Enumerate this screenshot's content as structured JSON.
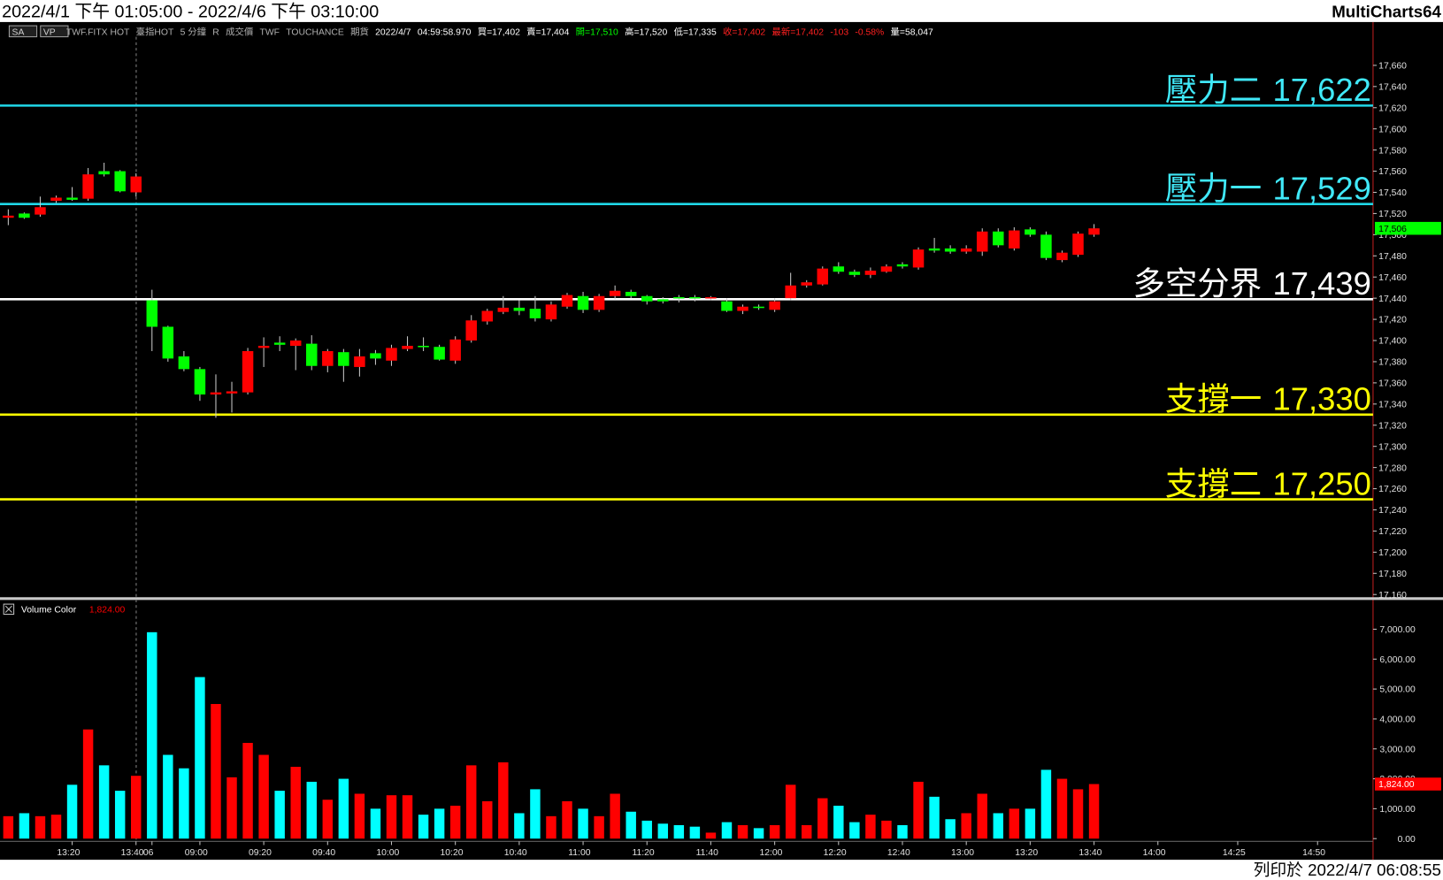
{
  "header": {
    "range": "2022/4/1 下午 01:05:00 - 2022/4/6 下午 03:10:00",
    "app": "MultiCharts64"
  },
  "toolbar": [
    "SA",
    "VP"
  ],
  "info": [
    {
      "text": "TWF.FITX HOT",
      "color": "#b0b0b0"
    },
    {
      "text": "臺指HOT",
      "color": "#b0b0b0"
    },
    {
      "text": "5 分鐘",
      "color": "#b0b0b0"
    },
    {
      "text": "R",
      "color": "#b0b0b0"
    },
    {
      "text": "成交價",
      "color": "#b0b0b0"
    },
    {
      "text": "TWF",
      "color": "#b0b0b0"
    },
    {
      "text": "TOUCHANCE",
      "color": "#b0b0b0"
    },
    {
      "text": "期貨",
      "color": "#b0b0b0"
    },
    {
      "text": "2022/4/7",
      "color": "#ffffff"
    },
    {
      "text": "04:59:58.970",
      "color": "#ffffff"
    },
    {
      "text": "買=17,402",
      "color": "#ffffff"
    },
    {
      "text": "賣=17,404",
      "color": "#ffffff"
    },
    {
      "text": "開=17,510",
      "color": "#00ff00"
    },
    {
      "text": "高=17,520",
      "color": "#ffffff"
    },
    {
      "text": "低=17,335",
      "color": "#ffffff"
    },
    {
      "text": "收=17,402",
      "color": "#ff2020"
    },
    {
      "text": "最新=17,402",
      "color": "#ff2020"
    },
    {
      "text": "-103",
      "color": "#ff2020"
    },
    {
      "text": "-0.58%",
      "color": "#ff2020"
    },
    {
      "text": "量=58,047",
      "color": "#ffffff"
    }
  ],
  "chart_data": {
    "type": "candlestick",
    "categories": [
      null,
      null,
      null,
      null,
      "13:20",
      null,
      null,
      null,
      "13:40",
      "06",
      null,
      null,
      "09:00",
      null,
      null,
      null,
      "09:20",
      null,
      null,
      null,
      "09:40",
      null,
      null,
      null,
      "10:00",
      null,
      null,
      null,
      "10:20",
      null,
      null,
      null,
      "10:40",
      null,
      null,
      null,
      "11:00",
      null,
      null,
      null,
      "11:20",
      null,
      null,
      null,
      "11:40",
      null,
      null,
      null,
      "12:00",
      null,
      null,
      null,
      "12:20",
      null,
      null,
      null,
      "12:40",
      null,
      null,
      null,
      "13:00",
      null,
      null,
      null,
      "13:20",
      null,
      null,
      null,
      "13:40",
      null,
      null,
      null,
      "14:00",
      null,
      null,
      null,
      null,
      "14:25",
      null,
      null,
      null,
      null,
      "14:50"
    ],
    "open": [
      17516,
      17520,
      17519,
      17532,
      17535,
      17534,
      17560,
      17560,
      17540,
      17438,
      17413,
      17385,
      17373,
      17349,
      17350,
      17351,
      17393,
      17398,
      17395,
      17397,
      17376,
      17389,
      17375,
      17388,
      17381,
      17392,
      17395,
      17394,
      17381,
      17400,
      17418,
      17427,
      17431,
      17430,
      17420,
      17432,
      17442,
      17429,
      17442,
      17446,
      17442,
      17439,
      17441,
      17441,
      17440,
      17437,
      17428,
      17432,
      17429,
      17440,
      17452,
      17453,
      17470,
      17465,
      17462,
      17465,
      17472,
      17469,
      17487,
      17487,
      17484,
      17484,
      17503,
      17487,
      17505,
      17500,
      17476,
      17481,
      17500,
      null,
      null,
      null,
      null,
      null,
      null,
      null,
      null,
      null,
      null,
      null,
      null,
      null,
      null
    ],
    "high": [
      17524,
      17521,
      17536,
      17537,
      17545,
      17563,
      17568,
      17561,
      17558,
      17448,
      17414,
      17390,
      17375,
      17368,
      17361,
      17393,
      17403,
      17404,
      17402,
      17405,
      17392,
      17392,
      17392,
      17391,
      17396,
      17404,
      17403,
      17396,
      17404,
      17424,
      17430,
      17442,
      17438,
      17442,
      17437,
      17445,
      17446,
      17444,
      17452,
      17448,
      17443,
      17441,
      17443,
      17443,
      17442,
      17440,
      17434,
      17434,
      17440,
      17464,
      17457,
      17470,
      17474,
      17467,
      17469,
      17472,
      17474,
      17488,
      17497,
      17490,
      17490,
      17506,
      17506,
      17507,
      17507,
      17503,
      17485,
      17503,
      17510,
      null,
      null,
      null,
      null,
      null,
      null,
      null,
      null,
      null,
      null,
      null,
      null,
      null,
      null
    ],
    "low": [
      17509,
      17515,
      17517,
      17530,
      17532,
      17532,
      17555,
      17540,
      17536,
      17390,
      17380,
      17371,
      17343,
      17327,
      17332,
      17349,
      17375,
      17390,
      17372,
      17372,
      17370,
      17361,
      17366,
      17377,
      17376,
      17390,
      17390,
      17381,
      17378,
      17398,
      17415,
      17425,
      17424,
      17418,
      17418,
      17430,
      17426,
      17427,
      17439,
      17440,
      17434,
      17435,
      17436,
      17437,
      17438,
      17427,
      17425,
      17429,
      17427,
      17438,
      17450,
      17452,
      17463,
      17460,
      17459,
      17464,
      17468,
      17467,
      17483,
      17482,
      17482,
      17480,
      17488,
      17485,
      17498,
      17476,
      17474,
      17479,
      17498,
      null,
      null,
      null,
      null,
      null,
      null,
      null,
      null,
      null,
      null,
      null,
      null,
      null,
      null
    ],
    "close": [
      17518,
      17516,
      17526,
      17535,
      17533,
      17557,
      17557,
      17541,
      17555,
      17413,
      17383,
      17373,
      17349,
      17351,
      17352,
      17390,
      17395,
      17396,
      17400,
      17376,
      17390,
      17376,
      17385,
      17383,
      17393,
      17395,
      17394,
      17382,
      17401,
      17419,
      17428,
      17431,
      17428,
      17421,
      17434,
      17443,
      17429,
      17442,
      17447,
      17442,
      17437,
      17437,
      17440,
      17440,
      17441,
      17428,
      17432,
      17431,
      17437,
      17452,
      17455,
      17468,
      17465,
      17462,
      17466,
      17470,
      17470,
      17486,
      17485,
      17484,
      17487,
      17503,
      17490,
      17504,
      17500,
      17478,
      17483,
      17501,
      17506,
      null,
      null,
      null,
      null,
      null,
      null,
      null,
      null,
      null,
      null,
      null,
      null,
      null,
      null
    ],
    "up_color": "#ff0000",
    "down_color": "#00ff00",
    "last_label": "17,506",
    "ylim": [
      17157,
      17687
    ],
    "yticks": [
      {
        "value": 17160,
        "label": "17,160"
      },
      {
        "value": 17180,
        "label": "17,180"
      },
      {
        "value": 17200,
        "label": "17,200"
      },
      {
        "value": 17220,
        "label": "17,220"
      },
      {
        "value": 17240,
        "label": "17,240"
      },
      {
        "value": 17260,
        "label": "17,260"
      },
      {
        "value": 17280,
        "label": "17,280"
      },
      {
        "value": 17300,
        "label": "17,300"
      },
      {
        "value": 17320,
        "label": "17,320"
      },
      {
        "value": 17340,
        "label": "17,340"
      },
      {
        "value": 17360,
        "label": "17,360"
      },
      {
        "value": 17380,
        "label": "17,380"
      },
      {
        "value": 17400,
        "label": "17,400"
      },
      {
        "value": 17420,
        "label": "17,420"
      },
      {
        "value": 17440,
        "label": "17,440"
      },
      {
        "value": 17460,
        "label": "17,460"
      },
      {
        "value": 17480,
        "label": "17,480"
      },
      {
        "value": 17500,
        "label": "17,500"
      },
      {
        "value": 17520,
        "label": "17,520"
      },
      {
        "value": 17540,
        "label": "17,540"
      },
      {
        "value": 17560,
        "label": "17,560"
      },
      {
        "value": 17580,
        "label": "17,580"
      },
      {
        "value": 17600,
        "label": "17,600"
      },
      {
        "value": 17620,
        "label": "17,620"
      },
      {
        "value": 17640,
        "label": "17,640"
      },
      {
        "value": 17660,
        "label": "17,660"
      }
    ],
    "levels": [
      {
        "name": "壓力二",
        "value": 17622,
        "label": "17,622",
        "color": "#20d8e8",
        "text_color": "#40e8f8"
      },
      {
        "name": "壓力一",
        "value": 17529,
        "label": "17,529",
        "color": "#20d8e8",
        "text_color": "#40e8f8"
      },
      {
        "name": "多空分界",
        "value": 17439,
        "label": "17,439",
        "color": "#ffffff",
        "text_color": "#ffffff"
      },
      {
        "name": "支撐一",
        "value": 17330,
        "label": "17,330",
        "color": "#ffff00",
        "text_color": "#ffff00"
      },
      {
        "name": "支撐二",
        "value": 17250,
        "label": "17,250",
        "color": "#ffff00",
        "text_color": "#ffff00"
      }
    ],
    "volume": {
      "name": "Volume Color",
      "last_label": "1,824.00",
      "up_color": "#ff0000",
      "down_color": "#00ffff",
      "values": [
        750,
        850,
        750,
        800,
        1800,
        3650,
        2450,
        1600,
        2100,
        6900,
        2800,
        2350,
        5400,
        4500,
        2050,
        3200,
        2800,
        1600,
        2400,
        1900,
        1300,
        2000,
        1500,
        1000,
        1450,
        1450,
        800,
        1000,
        1100,
        2450,
        1250,
        2550,
        850,
        1650,
        750,
        1250,
        1000,
        750,
        1500,
        900,
        600,
        500,
        450,
        400,
        200,
        550,
        450,
        350,
        450,
        1800,
        450,
        1350,
        1100,
        550,
        800,
        600,
        450,
        1900,
        1400,
        650,
        850,
        1500,
        850,
        1000,
        1000,
        2300,
        2000,
        1650,
        1824,
        null,
        null,
        null,
        null,
        null,
        null,
        null,
        null,
        null,
        null,
        null,
        null,
        null,
        null
      ],
      "ylim": [
        0,
        7900
      ],
      "yticks": [
        {
          "value": 0,
          "label": "0.00"
        },
        {
          "value": 1000,
          "label": "1,000.00"
        },
        {
          "value": 2000,
          "label": "2,000.00"
        },
        {
          "value": 3000,
          "label": "3,000.00"
        },
        {
          "value": 4000,
          "label": "4,000.00"
        },
        {
          "value": 5000,
          "label": "5,000.00"
        },
        {
          "value": 6000,
          "label": "6,000.00"
        },
        {
          "value": 7000,
          "label": "7,000.00"
        }
      ]
    }
  },
  "footer": "列印於 2022/4/7 06:08:55"
}
